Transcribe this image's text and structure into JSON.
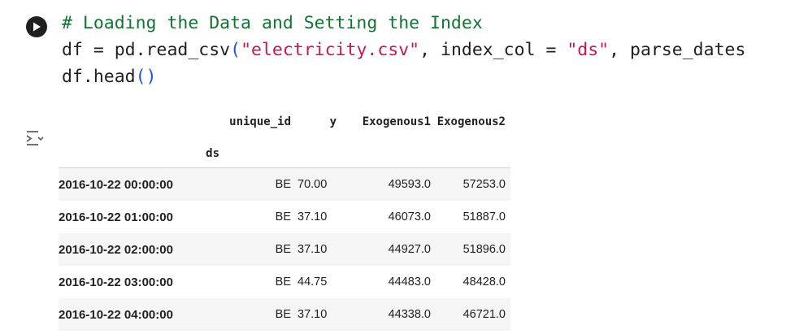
{
  "cell": {
    "code_lines": [
      {
        "tokens": [
          {
            "t": "# Loading the Data and Setting the Index",
            "k": "comment"
          }
        ]
      },
      {
        "tokens": [
          {
            "t": "df = pd.read_csv",
            "k": "plain"
          },
          {
            "t": "(",
            "k": "paren"
          },
          {
            "t": "\"electricity.csv\"",
            "k": "string"
          },
          {
            "t": ", index_col = ",
            "k": "plain"
          },
          {
            "t": "\"ds\"",
            "k": "string"
          },
          {
            "t": ", parse_dates",
            "k": "plain"
          }
        ]
      },
      {
        "tokens": [
          {
            "t": "df.head",
            "k": "plain"
          },
          {
            "t": "()",
            "k": "paren"
          }
        ]
      }
    ],
    "run_icon": "play-icon",
    "output_icon": "output-toggle-icon"
  },
  "table": {
    "columns": [
      "unique_id",
      "y",
      "Exogenous1",
      "Exogenous2"
    ],
    "index_name": "ds",
    "rows": [
      {
        "index": "2016-10-22 00:00:00",
        "unique_id": "BE",
        "y": "70.00",
        "exo1": "49593.0",
        "exo2": "57253.0"
      },
      {
        "index": "2016-10-22 01:00:00",
        "unique_id": "BE",
        "y": "37.10",
        "exo1": "46073.0",
        "exo2": "51887.0"
      },
      {
        "index": "2016-10-22 02:00:00",
        "unique_id": "BE",
        "y": "37.10",
        "exo1": "44927.0",
        "exo2": "51896.0"
      },
      {
        "index": "2016-10-22 03:00:00",
        "unique_id": "BE",
        "y": "44.75",
        "exo1": "44483.0",
        "exo2": "48428.0"
      },
      {
        "index": "2016-10-22 04:00:00",
        "unique_id": "BE",
        "y": "37.10",
        "exo1": "44338.0",
        "exo2": "46721.0"
      }
    ]
  }
}
